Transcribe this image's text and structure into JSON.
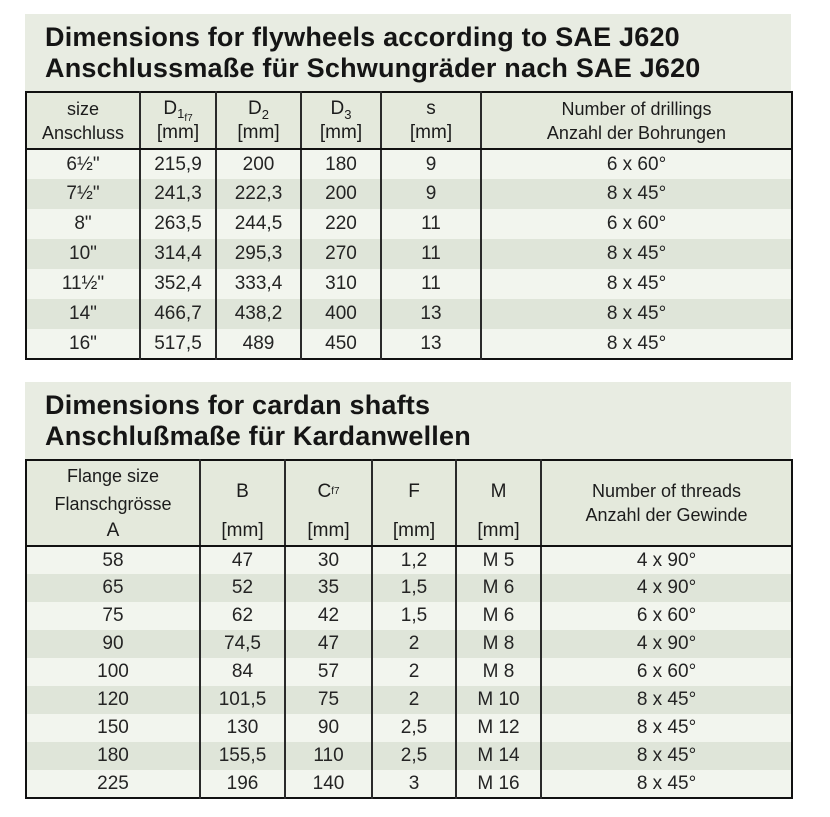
{
  "flywheel": {
    "title_en": "Dimensions for flywheels according to SAE J620",
    "title_de": "Anschlussmaße für Schwungräder nach SAE J620",
    "header": {
      "size_en": "size",
      "size_de": "Anschluss",
      "d1": {
        "base": "D",
        "sub": "1",
        "subsub": "f7",
        "unit": "[mm]"
      },
      "d2": {
        "base": "D",
        "sub": "2",
        "unit": "[mm]"
      },
      "d3": {
        "base": "D",
        "sub": "3",
        "unit": "[mm]"
      },
      "s": {
        "base": "s",
        "unit": "[mm]"
      },
      "drillings_en": "Number of drillings",
      "drillings_de": "Anzahl der Bohrungen"
    },
    "rows": [
      [
        "6½\"",
        "215,9",
        "200",
        "180",
        "9",
        "6 x 60°"
      ],
      [
        "7½\"",
        "241,3",
        "222,3",
        "200",
        "9",
        "8 x 45°"
      ],
      [
        "8\"",
        "263,5",
        "244,5",
        "220",
        "11",
        "6 x 60°"
      ],
      [
        "10\"",
        "314,4",
        "295,3",
        "270",
        "11",
        "8 x 45°"
      ],
      [
        "11½\"",
        "352,4",
        "333,4",
        "310",
        "11",
        "8 x 45°"
      ],
      [
        "14\"",
        "466,7",
        "438,2",
        "400",
        "13",
        "8 x 45°"
      ],
      [
        "16\"",
        "517,5",
        "489",
        "450",
        "13",
        "8 x 45°"
      ]
    ]
  },
  "cardan": {
    "title_en": "Dimensions for cardan shafts",
    "title_de": "Anschlußmaße für Kardanwellen",
    "header": {
      "flange_en": "Flange size",
      "flange_de": "Flanschgrösse",
      "flange_sym": "A",
      "b": {
        "base": "B",
        "unit": "[mm]"
      },
      "c": {
        "base": "C",
        "subsub": "f7",
        "unit": "[mm]"
      },
      "f": {
        "base": "F",
        "unit": "[mm]"
      },
      "m": {
        "base": "M",
        "unit": "[mm]"
      },
      "threads_en": "Number of threads",
      "threads_de": "Anzahl der Gewinde"
    },
    "rows": [
      [
        "58",
        "47",
        "30",
        "1,2",
        "M 5",
        "4 x 90°"
      ],
      [
        "65",
        "52",
        "35",
        "1,5",
        "M 6",
        "4 x 90°"
      ],
      [
        "75",
        "62",
        "42",
        "1,5",
        "M 6",
        "6 x 60°"
      ],
      [
        "90",
        "74,5",
        "47",
        "2",
        "M 8",
        "4 x 90°"
      ],
      [
        "100",
        "84",
        "57",
        "2",
        "M 8",
        "6 x 60°"
      ],
      [
        "120",
        "101,5",
        "75",
        "2",
        "M 10",
        "8 x 45°"
      ],
      [
        "150",
        "130",
        "90",
        "2,5",
        "M 12",
        "8 x 45°"
      ],
      [
        "180",
        "155,5",
        "110",
        "2,5",
        "M 14",
        "8 x 45°"
      ],
      [
        "225",
        "196",
        "140",
        "3",
        "M 16",
        "8 x 45°"
      ]
    ]
  },
  "colors": {
    "plate_bg": "#e8ece2",
    "header_bg": "#e4e9dc",
    "row_light": "#f2f5ee",
    "row_dark": "#dfe5d9",
    "border": "#111111",
    "text": "#1c1c1c",
    "page_bg": "#ffffff"
  }
}
